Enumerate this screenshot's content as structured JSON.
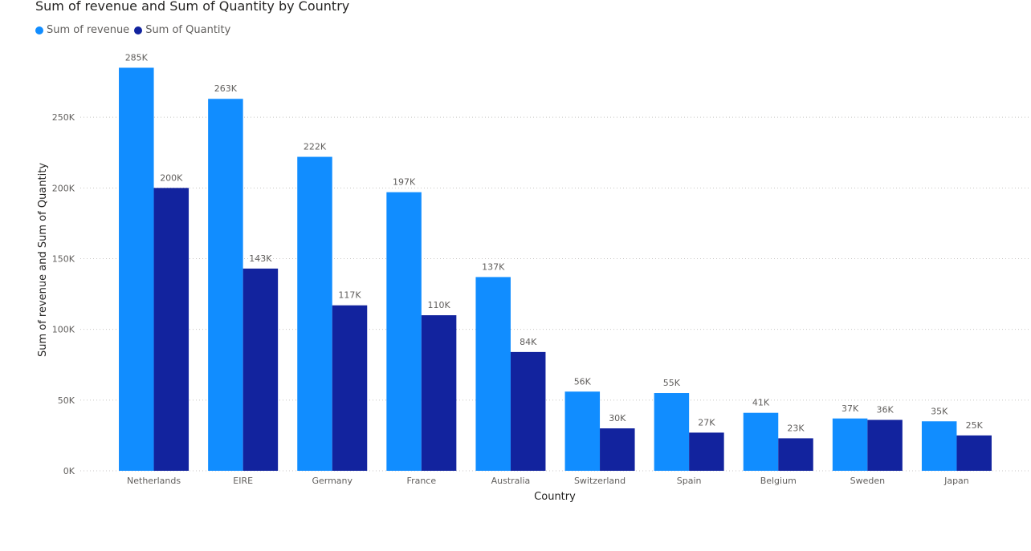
{
  "chart_data": {
    "type": "bar",
    "title": "Sum of revenue and Sum of Quantity by Country",
    "xlabel": "Country",
    "ylabel": "Sum of revenue and Sum of Quantity",
    "categories": [
      "Netherlands",
      "EIRE",
      "Germany",
      "France",
      "Australia",
      "Switzerland",
      "Spain",
      "Belgium",
      "Sweden",
      "Japan"
    ],
    "series": [
      {
        "name": "Sum of revenue",
        "color": "#118DFF",
        "values": [
          285000,
          263000,
          222000,
          197000,
          137000,
          56000,
          55000,
          41000,
          37000,
          35000
        ],
        "labels": [
          "285K",
          "263K",
          "222K",
          "197K",
          "137K",
          "56K",
          "55K",
          "41K",
          "37K",
          "35K"
        ]
      },
      {
        "name": "Sum of Quantity",
        "color": "#12239E",
        "values": [
          200000,
          143000,
          117000,
          110000,
          84000,
          30000,
          27000,
          23000,
          36000,
          25000
        ],
        "labels": [
          "200K",
          "143K",
          "117K",
          "110K",
          "84K",
          "30K",
          "27K",
          "23K",
          "36K",
          "25K"
        ]
      }
    ],
    "ylim": [
      0,
      300000
    ],
    "yticks": [
      0,
      50000,
      100000,
      150000,
      200000,
      250000
    ],
    "ytick_labels": [
      "0K",
      "50K",
      "100K",
      "150K",
      "200K",
      "250K"
    ],
    "grid": true,
    "legend_position": "top-left"
  }
}
